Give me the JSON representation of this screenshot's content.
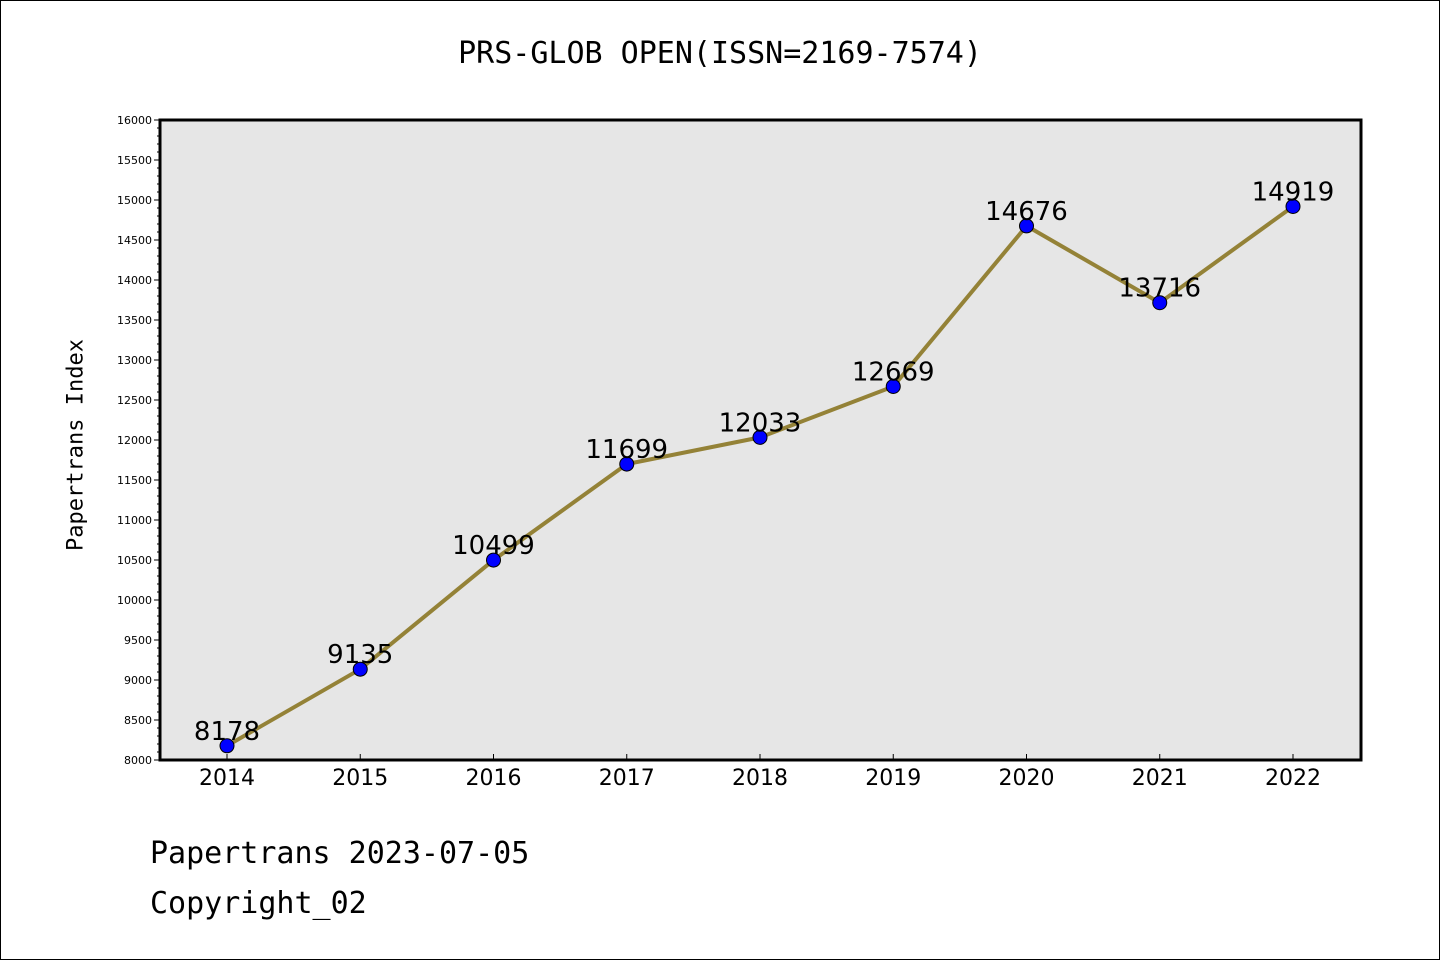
{
  "chart_data": {
    "type": "line",
    "title": "PRS-GLOB OPEN(ISSN=2169-7574)",
    "xlabel": "",
    "ylabel": "Papertrans Index",
    "categories": [
      "2014",
      "2015",
      "2016",
      "2017",
      "2018",
      "2019",
      "2020",
      "2021",
      "2022"
    ],
    "series": [
      {
        "values": [
          8178,
          9135,
          10499,
          11699,
          12033,
          12669,
          14676,
          13716,
          14919
        ]
      }
    ],
    "data_labels": [
      "8178",
      "9135",
      "10499",
      "11699",
      "12033",
      "12669",
      "14676",
      "13716",
      "14919"
    ],
    "ylim": [
      8000,
      16000
    ],
    "yticks": [
      "8000",
      "8500",
      "9000",
      "9500",
      "10000",
      "10500",
      "11000",
      "11500",
      "12000",
      "12500",
      "13000",
      "13500",
      "14000",
      "14500",
      "15000",
      "15500",
      "16000"
    ],
    "grid": false,
    "colors": {
      "line": "#948237",
      "marker": "#0000ff",
      "plot_background": "#e6e6e6"
    }
  },
  "footer": {
    "line1": "Papertrans 2023-07-05",
    "line2": "Copyright_02"
  }
}
